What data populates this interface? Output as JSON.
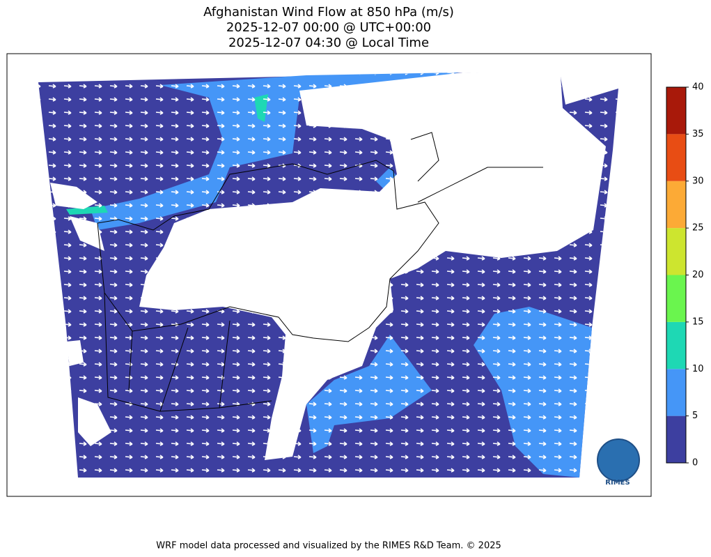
{
  "title": [
    "Afghanistan Wind Flow at 850 hPa (m/s)",
    "2025-12-07 00:00 @ UTC+00:00",
    "2025-12-07 04:30 @ Local Time"
  ],
  "colorbar": {
    "range": [
      0,
      40
    ],
    "ticks": [
      0,
      5,
      10,
      15,
      20,
      25,
      30,
      35,
      40
    ],
    "colors": [
      "#3d3fa0",
      "#4596f7",
      "#1ed8b4",
      "#6af54e",
      "#cde52f",
      "#fcaa36",
      "#e84d14",
      "#a8190a"
    ]
  },
  "logo": "RIMES",
  "footer": "WRF model data processed and visualized by the RIMES R&D Team. © 2025"
}
